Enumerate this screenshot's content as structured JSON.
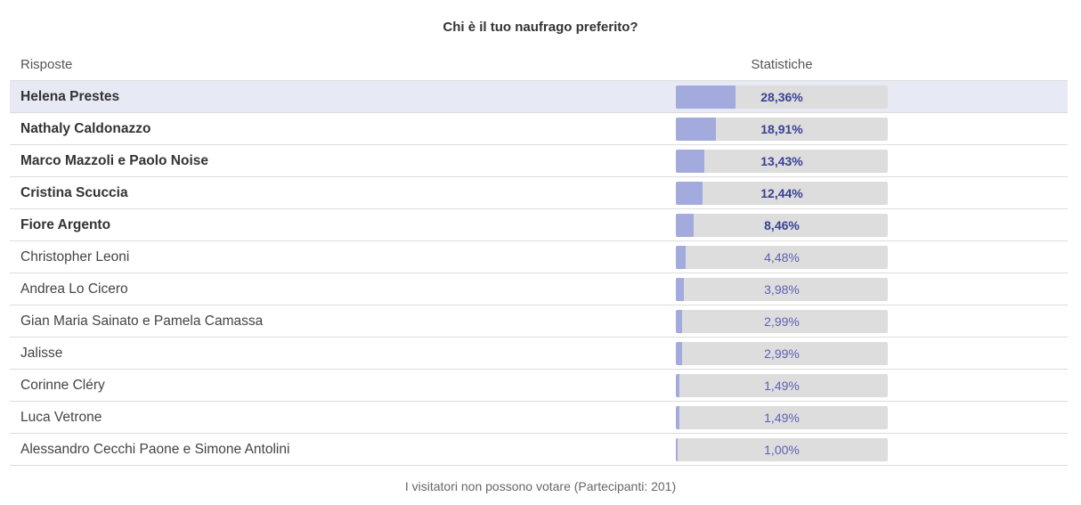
{
  "poll": {
    "title": "Chi è il tuo naufrago preferito?",
    "header_answers": "Risposte",
    "header_stats": "Statistiche",
    "footer": "I visitatori non possono votare (Partecipanti: 201)",
    "colors": {
      "bar_fill": "#a3aade",
      "bar_track": "#dddddd",
      "highlight_row": "#e7eaf5",
      "percent_text": "#3a4196"
    },
    "rows": [
      {
        "name": "Helena Prestes",
        "percent": "28,36%",
        "value": 28.36,
        "top": true,
        "highlight": true
      },
      {
        "name": "Nathaly Caldonazzo",
        "percent": "18,91%",
        "value": 18.91,
        "top": true,
        "highlight": false
      },
      {
        "name": "Marco Mazzoli e Paolo Noise",
        "percent": "13,43%",
        "value": 13.43,
        "top": true,
        "highlight": false
      },
      {
        "name": "Cristina Scuccia",
        "percent": "12,44%",
        "value": 12.44,
        "top": true,
        "highlight": false
      },
      {
        "name": "Fiore Argento",
        "percent": "8,46%",
        "value": 8.46,
        "top": true,
        "highlight": false
      },
      {
        "name": "Christopher Leoni",
        "percent": "4,48%",
        "value": 4.48,
        "top": false,
        "highlight": false
      },
      {
        "name": "Andrea Lo Cicero",
        "percent": "3,98%",
        "value": 3.98,
        "top": false,
        "highlight": false
      },
      {
        "name": "Gian Maria Sainato e Pamela Camassa",
        "percent": "2,99%",
        "value": 2.99,
        "top": false,
        "highlight": false
      },
      {
        "name": "Jalisse",
        "percent": "2,99%",
        "value": 2.99,
        "top": false,
        "highlight": false
      },
      {
        "name": "Corinne Cléry",
        "percent": "1,49%",
        "value": 1.49,
        "top": false,
        "highlight": false
      },
      {
        "name": "Luca Vetrone",
        "percent": "1,49%",
        "value": 1.49,
        "top": false,
        "highlight": false
      },
      {
        "name": "Alessandro Cecchi Paone e Simone Antolini",
        "percent": "1,00%",
        "value": 1.0,
        "top": false,
        "highlight": false
      }
    ]
  }
}
